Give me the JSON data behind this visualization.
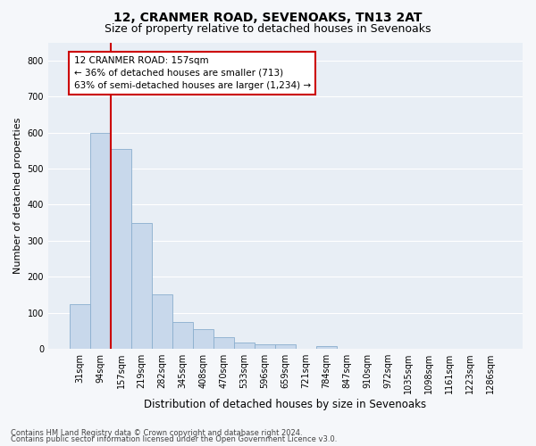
{
  "title": "12, CRANMER ROAD, SEVENOAKS, TN13 2AT",
  "subtitle": "Size of property relative to detached houses in Sevenoaks",
  "xlabel": "Distribution of detached houses by size in Sevenoaks",
  "ylabel": "Number of detached properties",
  "categories": [
    "31sqm",
    "94sqm",
    "157sqm",
    "219sqm",
    "282sqm",
    "345sqm",
    "408sqm",
    "470sqm",
    "533sqm",
    "596sqm",
    "659sqm",
    "721sqm",
    "784sqm",
    "847sqm",
    "910sqm",
    "972sqm",
    "1035sqm",
    "1098sqm",
    "1161sqm",
    "1223sqm",
    "1286sqm"
  ],
  "values": [
    125,
    600,
    555,
    348,
    150,
    75,
    55,
    33,
    18,
    13,
    13,
    0,
    8,
    0,
    0,
    0,
    0,
    0,
    0,
    0,
    0
  ],
  "bar_color": "#c8d8eb",
  "bar_edge_color": "#8aaece",
  "highlight_index": 2,
  "highlight_line_color": "#cc0000",
  "ylim": [
    0,
    850
  ],
  "yticks": [
    0,
    100,
    200,
    300,
    400,
    500,
    600,
    700,
    800
  ],
  "annotation_text": "12 CRANMER ROAD: 157sqm\n← 36% of detached houses are smaller (713)\n63% of semi-detached houses are larger (1,234) →",
  "annotation_box_facecolor": "#ffffff",
  "annotation_box_edgecolor": "#cc0000",
  "footer1": "Contains HM Land Registry data © Crown copyright and database right 2024.",
  "footer2": "Contains public sector information licensed under the Open Government Licence v3.0.",
  "plot_bg_color": "#e8eef5",
  "fig_bg_color": "#f5f7fa",
  "grid_color": "#ffffff",
  "title_fontsize": 10,
  "subtitle_fontsize": 9,
  "tick_fontsize": 7,
  "ylabel_fontsize": 8,
  "xlabel_fontsize": 8.5,
  "annotation_fontsize": 7.5,
  "footer_fontsize": 6
}
